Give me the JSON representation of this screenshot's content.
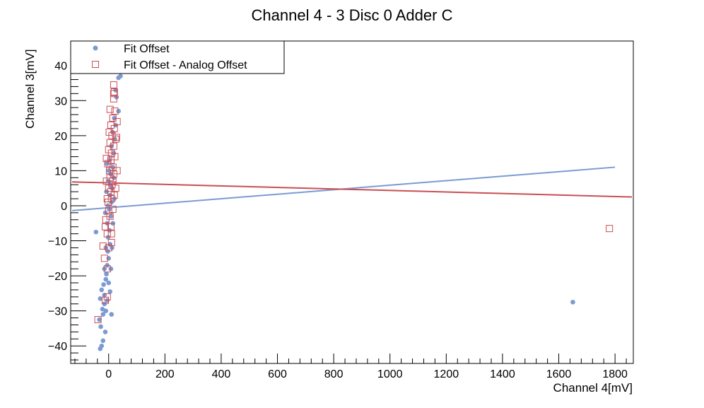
{
  "colors": {
    "fit_offset": "#7b9bd2",
    "fit_minus_analog": "#c94f55",
    "axis": "#000000",
    "background": "#ffffff"
  },
  "chart_data": {
    "type": "scatter",
    "title": "Channel 4 - 3 Disc 0 Adder C",
    "xlabel": "Channel 4[mV]",
    "ylabel": "Channel 3[mV]",
    "xlim": [
      -135,
      1865
    ],
    "ylim": [
      -45,
      47
    ],
    "x_ticks": [
      0,
      200,
      400,
      600,
      800,
      1000,
      1200,
      1400,
      1600,
      1800
    ],
    "y_ticks": [
      -40,
      -30,
      -20,
      -10,
      0,
      10,
      20,
      30,
      40
    ],
    "x_tick_labels": [
      "0",
      "200",
      "400",
      "600",
      "800",
      "1000",
      "1200",
      "1400",
      "1600",
      "1800"
    ],
    "y_tick_labels": [
      "−40",
      "−30",
      "−20",
      "−10",
      "0",
      "10",
      "20",
      "30",
      "40"
    ],
    "grid": false,
    "legend_position": "top-left",
    "legend": [
      {
        "label": "Fit Offset",
        "marker": "circle",
        "color": "#7b9bd2"
      },
      {
        "label": "Fit Offset - Analog Offset",
        "marker": "open-square",
        "color": "#c94f55"
      }
    ],
    "series": [
      {
        "name": "Fit Offset",
        "marker": "circle",
        "color": "#7b9bd2",
        "points": [
          [
            -45,
            -7.5
          ],
          [
            -30,
            -40.8
          ],
          [
            -25,
            -40
          ],
          [
            -20,
            -38.5
          ],
          [
            -12,
            -36
          ],
          [
            -28,
            -34.5
          ],
          [
            -33,
            -32.5
          ],
          [
            -20,
            -31
          ],
          [
            -10,
            -30
          ],
          [
            -22,
            -29.5
          ],
          [
            -30,
            -26.5
          ],
          [
            -5,
            -27
          ],
          [
            -15,
            -25.5
          ],
          [
            -25,
            -24
          ],
          [
            5,
            -24.5
          ],
          [
            -18,
            -22.5
          ],
          [
            0,
            -22
          ],
          [
            -10,
            -21
          ],
          [
            -8,
            -19.5
          ],
          [
            -5,
            -17
          ],
          [
            -15,
            -18
          ],
          [
            0,
            -15
          ],
          [
            -3,
            -13
          ],
          [
            -10,
            -12
          ],
          [
            5,
            -11
          ],
          [
            -2,
            -9
          ],
          [
            3,
            -7
          ],
          [
            -5,
            -5
          ],
          [
            8,
            -3
          ],
          [
            2,
            -1
          ],
          [
            10,
            1
          ],
          [
            -3,
            0
          ],
          [
            5,
            3
          ],
          [
            12,
            5
          ],
          [
            -2,
            7
          ],
          [
            8,
            9
          ],
          [
            15,
            11
          ],
          [
            3,
            13
          ],
          [
            18,
            15
          ],
          [
            10,
            17
          ],
          [
            22,
            19
          ],
          [
            14,
            21
          ],
          [
            25,
            23
          ],
          [
            20,
            25
          ],
          [
            35,
            27
          ],
          [
            28,
            31
          ],
          [
            25,
            33
          ],
          [
            42,
            37
          ],
          [
            35,
            36.5
          ],
          [
            1650,
            -27.5
          ],
          [
            15,
            -5
          ],
          [
            20,
            2
          ],
          [
            -8,
            4
          ],
          [
            0,
            10
          ],
          [
            12,
            -12
          ],
          [
            -12,
            -2
          ],
          [
            6,
            6
          ],
          [
            18,
            8
          ],
          [
            -6,
            12
          ],
          [
            8,
            -18
          ],
          [
            -15,
            -28
          ],
          [
            10,
            -31
          ]
        ]
      },
      {
        "name": "Fit Offset - Analog Offset",
        "marker": "open-square",
        "color": "#c94f55",
        "points": [
          [
            -38,
            -32.5
          ],
          [
            -12,
            -27
          ],
          [
            -5,
            -26
          ],
          [
            -20,
            -11.5
          ],
          [
            0,
            -12
          ],
          [
            10,
            -10.5
          ],
          [
            -5,
            -8
          ],
          [
            8,
            -6
          ],
          [
            -10,
            -4
          ],
          [
            5,
            -3
          ],
          [
            15,
            -1
          ],
          [
            -2,
            1
          ],
          [
            10,
            2
          ],
          [
            20,
            3
          ],
          [
            0,
            5
          ],
          [
            12,
            6
          ],
          [
            -8,
            7
          ],
          [
            5,
            8
          ],
          [
            18,
            9
          ],
          [
            3,
            10
          ],
          [
            15,
            11
          ],
          [
            -3,
            12
          ],
          [
            8,
            13
          ],
          [
            22,
            14
          ],
          [
            10,
            15
          ],
          [
            -8,
            13.5
          ],
          [
            0,
            16
          ],
          [
            18,
            17
          ],
          [
            5,
            18
          ],
          [
            25,
            19
          ],
          [
            12,
            20
          ],
          [
            2,
            21
          ],
          [
            20,
            22
          ],
          [
            8,
            23
          ],
          [
            30,
            24
          ],
          [
            15,
            25
          ],
          [
            5,
            27.5
          ],
          [
            22,
            27
          ],
          [
            18,
            30.5
          ],
          [
            20,
            32.5
          ],
          [
            18,
            34.5
          ],
          [
            18,
            32
          ],
          [
            28,
            19.5
          ],
          [
            -15,
            -15
          ],
          [
            -5,
            -18
          ],
          [
            10,
            -8
          ],
          [
            25,
            5
          ],
          [
            -12,
            -6
          ],
          [
            30,
            10
          ],
          [
            0,
            -1.5
          ],
          [
            15,
            7
          ],
          [
            8,
            4
          ],
          [
            -5,
            2
          ],
          [
            1780,
            -6.5
          ]
        ]
      }
    ],
    "fit_lines": [
      {
        "name": "Fit Offset",
        "color": "#7b9bd2",
        "x": [
          -130,
          1800
        ],
        "y": [
          -1.4,
          11
        ]
      },
      {
        "name": "Fit Offset - Analog Offset",
        "color": "#c94f55",
        "x": [
          -130,
          1860
        ],
        "y": [
          6.8,
          2.5
        ]
      }
    ]
  }
}
